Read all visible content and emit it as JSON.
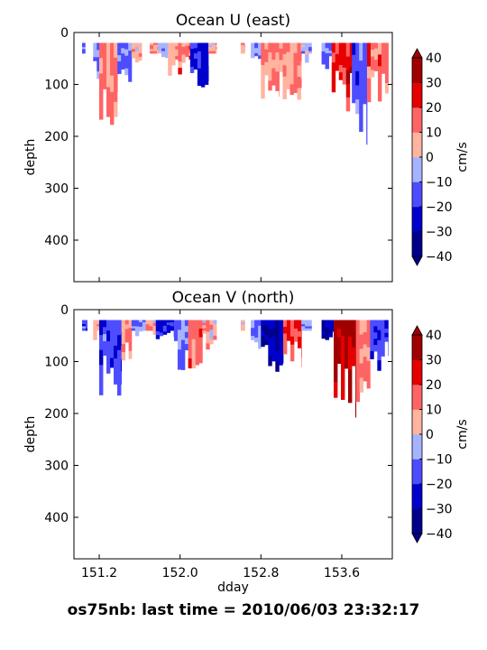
{
  "chart_data": [
    {
      "type": "heatmap",
      "title": "Ocean U (east)",
      "ylabel": "depth",
      "xlabel": "",
      "xlim": [
        150.95,
        154.1
      ],
      "ylim": [
        480,
        0
      ],
      "yticks": [
        0,
        100,
        200,
        300,
        400
      ],
      "yticks_labels": [
        "0",
        "100",
        "200",
        "300",
        "400"
      ],
      "xticks": [
        151.2,
        152.0,
        152.8,
        153.6
      ],
      "colorbar": {
        "label": "cm/s",
        "levels": [
          -40,
          -30,
          -20,
          -10,
          0,
          10,
          20,
          30,
          40
        ],
        "tick_labels": [
          "40",
          "30",
          "20",
          "10",
          "0",
          "−10",
          "−20",
          "−30",
          "−40"
        ],
        "colors": [
          "#00008b",
          "#0000cd",
          "#4d4dff",
          "#a6b4ff",
          "#ffb4a0",
          "#ff6464",
          "#e60000",
          "#a00000"
        ],
        "extend": "both"
      },
      "segments": [
        {
          "x": [
            151.03,
            151.06
          ],
          "depth_max": 40,
          "value": -15
        },
        {
          "x": [
            151.14,
            151.2
          ],
          "depth_max": 100,
          "value": -8
        },
        {
          "x": [
            151.2,
            151.38
          ],
          "depth_max": 180,
          "value": 12
        },
        {
          "x": [
            151.38,
            151.52
          ],
          "depth_max": 120,
          "value": -12
        },
        {
          "x": [
            151.52,
            151.62
          ],
          "depth_max": 60,
          "value": 5
        },
        {
          "x": [
            151.7,
            151.78
          ],
          "depth_max": 60,
          "value": 8
        },
        {
          "x": [
            151.78,
            151.88
          ],
          "depth_max": 60,
          "value": -6
        },
        {
          "x": [
            151.88,
            151.98
          ],
          "depth_max": 100,
          "value": 7
        },
        {
          "x": [
            151.98,
            152.1
          ],
          "depth_max": 90,
          "value": 15
        },
        {
          "x": [
            152.1,
            152.28
          ],
          "depth_max": 120,
          "value": -22
        },
        {
          "x": [
            152.28,
            152.36
          ],
          "depth_max": 40,
          "value": 6
        },
        {
          "x": [
            152.6,
            152.64
          ],
          "depth_max": 40,
          "value": 5
        },
        {
          "x": [
            152.7,
            152.8
          ],
          "depth_max": 80,
          "value": -10
        },
        {
          "x": [
            152.8,
            152.98
          ],
          "depth_max": 140,
          "value": 12
        },
        {
          "x": [
            152.98,
            153.2
          ],
          "depth_max": 130,
          "value": 8
        },
        {
          "x": [
            153.2,
            153.3
          ],
          "depth_max": 60,
          "value": -5
        },
        {
          "x": [
            153.4,
            153.5
          ],
          "depth_max": 90,
          "value": -12
        },
        {
          "x": [
            153.5,
            153.7
          ],
          "depth_max": 160,
          "value": 24
        },
        {
          "x": [
            153.7,
            153.85
          ],
          "depth_max": 220,
          "value": -15
        },
        {
          "x": [
            153.85,
            154.06
          ],
          "depth_max": 140,
          "value": 14
        }
      ]
    },
    {
      "type": "heatmap",
      "title": "Ocean V (north)",
      "ylabel": "depth",
      "xlabel": "dday",
      "xlim": [
        150.95,
        154.1
      ],
      "ylim": [
        480,
        0
      ],
      "yticks": [
        0,
        100,
        200,
        300,
        400
      ],
      "yticks_labels": [
        "0",
        "100",
        "200",
        "300",
        "400"
      ],
      "xticks": [
        151.2,
        152.0,
        152.8,
        153.6
      ],
      "xticks_labels": [
        "151.2",
        "152.0",
        "152.8",
        "153.6"
      ],
      "colorbar": {
        "label": "cm/s",
        "levels": [
          -40,
          -30,
          -20,
          -10,
          0,
          10,
          20,
          30,
          40
        ],
        "tick_labels": [
          "40",
          "30",
          "20",
          "10",
          "0",
          "−10",
          "−20",
          "−30",
          "−40"
        ],
        "colors": [
          "#00008b",
          "#0000cd",
          "#4d4dff",
          "#a6b4ff",
          "#ffb4a0",
          "#ff6464",
          "#e60000",
          "#a00000"
        ],
        "extend": "both"
      },
      "segments": [
        {
          "x": [
            151.03,
            151.08
          ],
          "depth_max": 40,
          "value": -15
        },
        {
          "x": [
            151.14,
            151.2
          ],
          "depth_max": 60,
          "value": 8
        },
        {
          "x": [
            151.2,
            151.42
          ],
          "depth_max": 180,
          "value": -16
        },
        {
          "x": [
            151.42,
            151.52
          ],
          "depth_max": 110,
          "value": 8
        },
        {
          "x": [
            151.52,
            151.66
          ],
          "depth_max": 60,
          "value": -8
        },
        {
          "x": [
            151.66,
            151.76
          ],
          "depth_max": 50,
          "value": 6
        },
        {
          "x": [
            151.76,
            151.94
          ],
          "depth_max": 60,
          "value": -24
        },
        {
          "x": [
            151.94,
            152.08
          ],
          "depth_max": 120,
          "value": -12
        },
        {
          "x": [
            152.08,
            152.22
          ],
          "depth_max": 120,
          "value": 14
        },
        {
          "x": [
            152.22,
            152.36
          ],
          "depth_max": 80,
          "value": 6
        },
        {
          "x": [
            152.6,
            152.64
          ],
          "depth_max": 40,
          "value": 5
        },
        {
          "x": [
            152.7,
            152.8
          ],
          "depth_max": 80,
          "value": -10
        },
        {
          "x": [
            152.8,
            153.02
          ],
          "depth_max": 140,
          "value": -30
        },
        {
          "x": [
            153.02,
            153.2
          ],
          "depth_max": 120,
          "value": 22
        },
        {
          "x": [
            153.2,
            153.3
          ],
          "depth_max": 50,
          "value": -8
        },
        {
          "x": [
            153.4,
            153.52
          ],
          "depth_max": 60,
          "value": -28
        },
        {
          "x": [
            153.52,
            153.74
          ],
          "depth_max": 220,
          "value": 34
        },
        {
          "x": [
            153.74,
            153.88
          ],
          "depth_max": 180,
          "value": 12
        },
        {
          "x": [
            153.88,
            154.06
          ],
          "depth_max": 120,
          "value": -18
        }
      ]
    }
  ],
  "footer": "os75nb: last time = 2010/06/03 23:32:17"
}
